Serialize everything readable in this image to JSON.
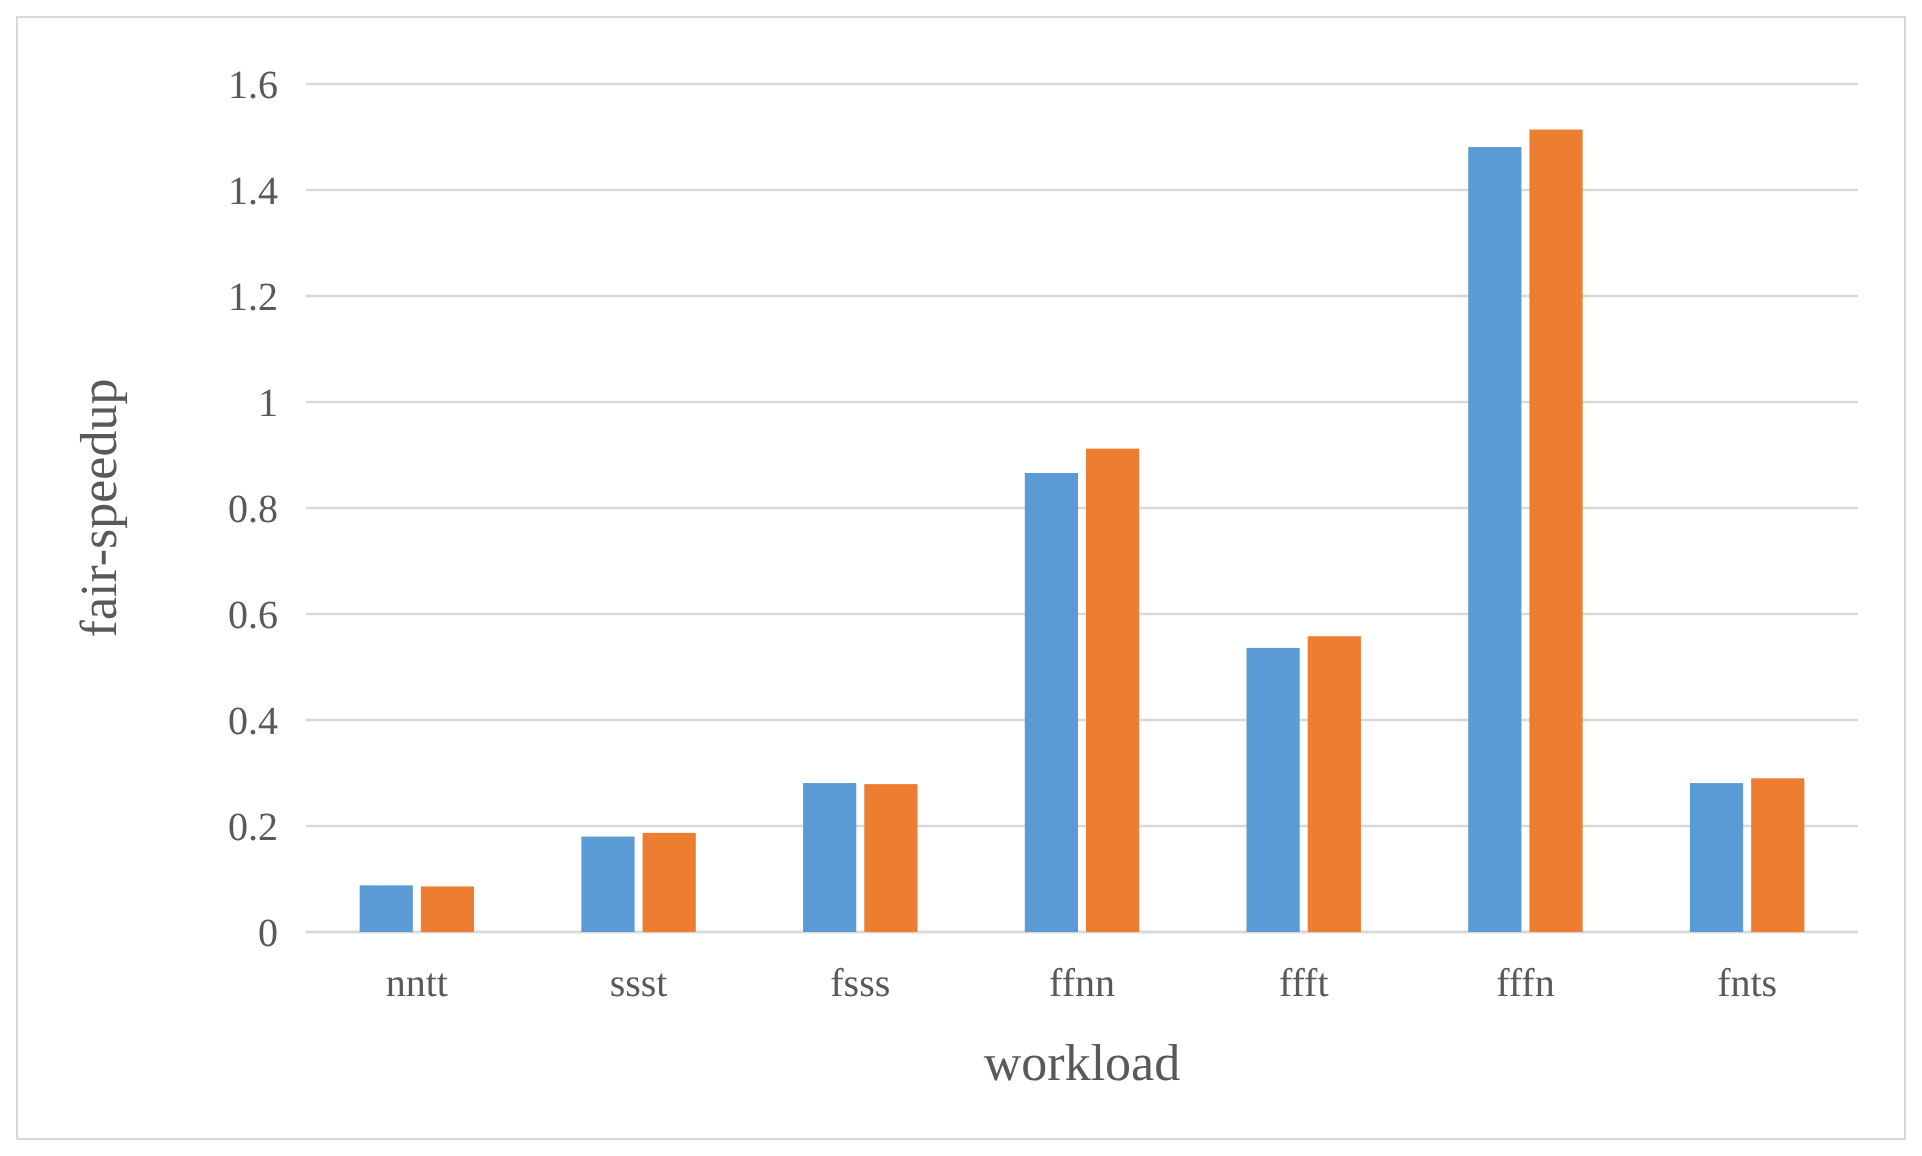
{
  "chart_data": {
    "type": "bar",
    "xlabel": "workload",
    "ylabel": "fair-speedup",
    "categories": [
      "nntt",
      "ssst",
      "fsss",
      "ffnn",
      "ffft",
      "fffn",
      "fnts"
    ],
    "series": [
      {
        "color": "#5b9bd5",
        "values": [
          0.088,
          0.18,
          0.281,
          0.866,
          0.536,
          1.481,
          0.281
        ]
      },
      {
        "color": "#ed7d31",
        "values": [
          0.086,
          0.187,
          0.279,
          0.912,
          0.558,
          1.514,
          0.29
        ]
      }
    ],
    "ylim": [
      0,
      1.6
    ],
    "yticks": [
      0,
      0.2,
      0.4,
      0.6,
      0.8,
      1,
      1.2,
      1.4,
      1.6
    ],
    "grid": "y"
  }
}
